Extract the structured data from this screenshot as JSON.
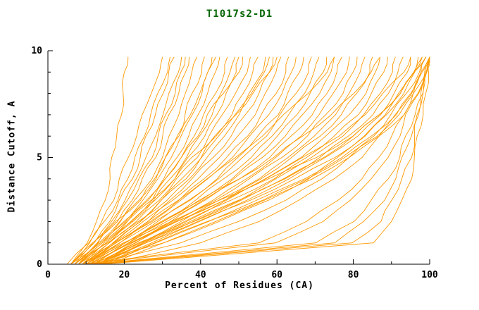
{
  "chart_data": {
    "type": "line",
    "title": "T1017s2-D1",
    "xlabel": "Percent of Residues (CA)",
    "ylabel": "Distance Cutoff, A",
    "xlim": [
      0,
      100
    ],
    "ylim": [
      0,
      10
    ],
    "x_ticks": [
      0,
      20,
      40,
      60,
      80,
      100
    ],
    "x_minor_step": 10,
    "y_ticks": [
      0,
      5,
      10
    ],
    "y_minor_step": 1,
    "grid": "off",
    "legend": "none",
    "line_color": "#ff9900",
    "axis_color": "#000000",
    "title_color": "#006400",
    "y_levels": [
      0,
      1,
      2,
      3,
      4,
      5,
      6,
      7,
      8,
      9,
      9.7
    ],
    "series_x": [
      [
        6,
        10,
        13,
        15,
        16,
        17,
        18,
        19,
        20,
        20,
        21
      ],
      [
        5,
        11,
        14,
        17,
        19,
        21,
        23,
        25,
        27,
        29,
        30
      ],
      [
        6,
        12,
        16,
        19,
        22,
        24,
        26,
        28,
        30,
        32,
        33
      ],
      [
        7,
        13,
        17,
        20,
        23,
        26,
        28,
        30,
        32,
        34,
        35
      ],
      [
        6,
        12,
        18,
        22,
        25,
        28,
        30,
        32,
        34,
        36,
        37
      ],
      [
        8,
        14,
        19,
        23,
        27,
        30,
        32,
        34,
        36,
        38,
        39
      ],
      [
        7,
        13,
        18,
        24,
        28,
        31,
        34,
        36,
        38,
        40,
        41
      ],
      [
        6,
        14,
        20,
        25,
        29,
        32,
        35,
        38,
        40,
        42,
        43
      ],
      [
        8,
        15,
        21,
        26,
        30,
        34,
        37,
        39,
        42,
        44,
        45
      ],
      [
        7,
        14,
        20,
        26,
        31,
        35,
        38,
        41,
        44,
        46,
        47
      ],
      [
        9,
        16,
        22,
        28,
        32,
        36,
        40,
        43,
        45,
        48,
        49
      ],
      [
        8,
        15,
        22,
        28,
        33,
        37,
        41,
        44,
        47,
        50,
        51
      ],
      [
        7,
        16,
        23,
        29,
        34,
        39,
        42,
        46,
        49,
        52,
        53
      ],
      [
        9,
        17,
        24,
        30,
        36,
        40,
        44,
        48,
        51,
        54,
        55
      ],
      [
        8,
        16,
        24,
        31,
        37,
        42,
        46,
        50,
        53,
        56,
        57
      ],
      [
        10,
        18,
        26,
        32,
        38,
        43,
        48,
        52,
        55,
        58,
        59
      ],
      [
        9,
        17,
        25,
        33,
        39,
        45,
        50,
        54,
        57,
        60,
        61
      ],
      [
        10,
        19,
        27,
        34,
        41,
        47,
        52,
        56,
        60,
        62,
        63
      ],
      [
        9,
        18,
        27,
        35,
        42,
        48,
        53,
        58,
        61,
        64,
        65
      ],
      [
        11,
        20,
        29,
        37,
        44,
        50,
        55,
        60,
        63,
        66,
        67
      ],
      [
        10,
        19,
        28,
        37,
        45,
        51,
        57,
        61,
        65,
        68,
        69
      ],
      [
        11,
        21,
        30,
        39,
        46,
        53,
        59,
        63,
        67,
        70,
        71
      ],
      [
        10,
        20,
        30,
        40,
        48,
        55,
        60,
        65,
        69,
        72,
        73
      ],
      [
        12,
        22,
        32,
        41,
        49,
        56,
        62,
        67,
        71,
        74,
        75
      ],
      [
        11,
        21,
        31,
        41,
        50,
        58,
        64,
        69,
        73,
        76,
        77
      ],
      [
        12,
        23,
        33,
        43,
        52,
        60,
        66,
        71,
        75,
        78,
        79
      ],
      [
        11,
        22,
        33,
        44,
        53,
        61,
        68,
        73,
        77,
        80,
        81
      ],
      [
        13,
        24,
        35,
        45,
        55,
        63,
        70,
        75,
        79,
        82,
        83
      ],
      [
        12,
        23,
        34,
        46,
        56,
        64,
        71,
        77,
        81,
        84,
        85
      ],
      [
        13,
        25,
        36,
        47,
        57,
        66,
        73,
        79,
        83,
        86,
        87
      ],
      [
        12,
        24,
        36,
        48,
        59,
        68,
        75,
        81,
        85,
        88,
        89
      ],
      [
        14,
        26,
        38,
        50,
        60,
        69,
        77,
        83,
        87,
        90,
        91
      ],
      [
        13,
        25,
        38,
        51,
        62,
        71,
        79,
        85,
        89,
        92,
        93
      ],
      [
        14,
        27,
        40,
        52,
        63,
        73,
        81,
        87,
        91,
        94,
        95
      ],
      [
        13,
        26,
        39,
        53,
        65,
        75,
        83,
        89,
        93,
        96,
        97
      ],
      [
        15,
        28,
        42,
        55,
        67,
        77,
        85,
        91,
        95,
        98,
        99
      ],
      [
        14,
        28,
        42,
        56,
        68,
        78,
        86,
        92,
        96,
        99,
        100
      ],
      [
        9,
        20,
        32,
        45,
        58,
        70,
        80,
        87,
        92,
        96,
        98
      ],
      [
        10,
        30,
        45,
        58,
        68,
        76,
        83,
        88,
        92,
        96,
        98
      ],
      [
        12,
        35,
        50,
        62,
        72,
        79,
        85,
        90,
        94,
        97,
        99
      ],
      [
        15,
        40,
        55,
        66,
        75,
        82,
        87,
        91,
        95,
        98,
        100
      ],
      [
        9,
        55,
        68,
        76,
        82,
        87,
        90,
        93,
        96,
        98,
        100
      ],
      [
        10,
        60,
        72,
        79,
        85,
        89,
        92,
        94,
        97,
        99,
        100
      ],
      [
        11,
        70,
        80,
        85,
        89,
        92,
        94,
        96,
        98,
        99,
        100
      ],
      [
        12,
        75,
        83,
        88,
        91,
        93,
        95,
        97,
        98,
        99,
        100
      ],
      [
        13,
        80,
        87,
        90,
        93,
        95,
        96,
        97,
        98,
        99,
        100
      ],
      [
        14,
        85,
        90,
        93,
        95,
        96,
        97,
        98,
        99,
        100,
        100
      ],
      [
        6,
        11,
        15,
        18,
        21,
        23,
        25,
        27,
        29,
        31,
        32
      ],
      [
        7,
        12,
        17,
        21,
        24,
        27,
        29,
        31,
        33,
        35,
        36
      ],
      [
        8,
        13,
        19,
        24,
        28,
        31,
        34,
        37,
        40,
        42,
        44
      ],
      [
        9,
        15,
        22,
        27,
        31,
        35,
        39,
        42,
        46,
        49,
        50
      ],
      [
        10,
        17,
        24,
        30,
        35,
        40,
        45,
        49,
        53,
        57,
        58
      ],
      [
        8,
        14,
        21,
        27,
        33,
        38,
        44,
        49,
        54,
        58,
        60
      ],
      [
        11,
        18,
        26,
        34,
        42,
        49,
        56,
        62,
        68,
        73,
        75
      ],
      [
        12,
        20,
        30,
        40,
        50,
        59,
        67,
        74,
        80,
        85,
        87
      ],
      [
        13,
        22,
        34,
        46,
        57,
        67,
        76,
        83,
        88,
        93,
        95
      ],
      [
        14,
        24,
        37,
        50,
        62,
        72,
        80,
        87,
        92,
        96,
        99
      ],
      [
        16,
        30,
        44,
        57,
        69,
        79,
        87,
        93,
        97,
        99,
        100
      ]
    ]
  }
}
